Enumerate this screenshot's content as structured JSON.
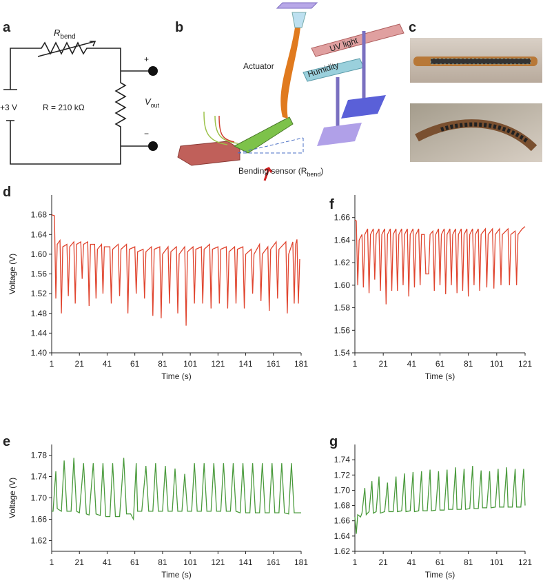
{
  "panel_a": {
    "label": "a",
    "r_bend": "R",
    "r_bend_sub": "bend",
    "plus": "+",
    "minus": "−",
    "source": "+3 V",
    "resistor": "R = 210 kΩ",
    "vout": "V",
    "vout_sub": "out"
  },
  "panel_b": {
    "label": "b",
    "actuator": "Actuator",
    "uv_light": "UV light",
    "humidity": "Humidity",
    "sensor": "Bending sensor (R",
    "sensor_sub": "bend",
    "sensor_end": ")"
  },
  "panel_c": {
    "label": "c"
  },
  "chart_data": [
    {
      "type": "line",
      "label": "d",
      "xlabel": "Time (s)",
      "ylabel": "Voltage (V)",
      "color": "#e0452f",
      "xlim": [
        1,
        181
      ],
      "ylim": [
        1.4,
        1.72
      ],
      "xticks": [
        1,
        21,
        41,
        61,
        81,
        101,
        121,
        141,
        161,
        181
      ],
      "yticks": [
        {
          "value": 1.4,
          "label": "1.40"
        },
        1.44,
        1.48,
        1.52,
        1.56,
        {
          "value": 1.6,
          "label": "1.60"
        },
        1.64,
        1.68
      ],
      "x": [
        1,
        3,
        4,
        5,
        7,
        8,
        9,
        12,
        13,
        14,
        17,
        18,
        19,
        22,
        23,
        24,
        27,
        28,
        29,
        32,
        33,
        34,
        37,
        38,
        39,
        43,
        44,
        45,
        49,
        50,
        51,
        55,
        56,
        57,
        61,
        62,
        63,
        67,
        68,
        69,
        73,
        74,
        75,
        79,
        80,
        81,
        85,
        86,
        87,
        91,
        92,
        93,
        97,
        98,
        99,
        103,
        104,
        105,
        109,
        110,
        111,
        115,
        116,
        117,
        121,
        122,
        123,
        127,
        128,
        129,
        133,
        134,
        135,
        139,
        140,
        141,
        145,
        146,
        147,
        151,
        152,
        153,
        157,
        158,
        159,
        163,
        164,
        165,
        170,
        171,
        172,
        175,
        176,
        177,
        178,
        179,
        180
      ],
      "values": [
        1.68,
        1.678,
        1.51,
        1.62,
        1.628,
        1.48,
        1.615,
        1.62,
        1.515,
        1.615,
        1.625,
        1.5,
        1.62,
        1.625,
        1.55,
        1.62,
        1.625,
        1.495,
        1.62,
        1.62,
        1.51,
        1.61,
        1.62,
        1.52,
        1.615,
        1.615,
        1.5,
        1.61,
        1.62,
        1.515,
        1.61,
        1.62,
        1.48,
        1.61,
        1.615,
        1.52,
        1.605,
        1.61,
        1.51,
        1.605,
        1.615,
        1.475,
        1.61,
        1.615,
        1.47,
        1.6,
        1.615,
        1.5,
        1.605,
        1.615,
        1.48,
        1.6,
        1.615,
        1.455,
        1.605,
        1.615,
        1.5,
        1.61,
        1.615,
        1.5,
        1.61,
        1.62,
        1.49,
        1.61,
        1.615,
        1.5,
        1.61,
        1.615,
        1.49,
        1.605,
        1.615,
        1.5,
        1.61,
        1.615,
        1.49,
        1.6,
        1.61,
        1.52,
        1.6,
        1.62,
        1.505,
        1.6,
        1.615,
        1.485,
        1.61,
        1.625,
        1.51,
        1.61,
        1.625,
        1.48,
        1.6,
        1.625,
        1.5,
        1.62,
        1.63,
        1.5,
        1.59
      ]
    },
    {
      "type": "line",
      "label": "f",
      "xlabel": "Time (s)",
      "color": "#e0452f",
      "xlim": [
        1,
        121
      ],
      "ylim": [
        1.54,
        1.68
      ],
      "xticks": [
        1,
        21,
        41,
        61,
        81,
        101,
        121
      ],
      "yticks": [
        1.54,
        1.56,
        1.58,
        {
          "value": 1.6,
          "label": "1.60"
        },
        1.62,
        1.64,
        1.66
      ],
      "x": [
        1,
        2,
        3,
        4,
        6,
        7,
        8,
        10,
        11,
        12,
        14,
        15,
        16,
        18,
        19,
        20,
        22,
        23,
        24,
        26,
        27,
        28,
        30,
        31,
        32,
        34,
        35,
        36,
        38,
        39,
        40,
        42,
        43,
        44,
        46,
        47,
        48,
        50,
        51,
        53,
        54,
        56,
        57,
        58,
        60,
        61,
        62,
        64,
        65,
        66,
        68,
        69,
        70,
        72,
        73,
        74,
        76,
        77,
        78,
        80,
        81,
        82,
        84,
        85,
        86,
        88,
        89,
        90,
        93,
        94,
        95,
        98,
        99,
        100,
        103,
        104,
        105,
        109,
        110,
        111,
        114,
        115,
        116,
        119,
        121
      ],
      "values": [
        1.658,
        1.657,
        1.6,
        1.64,
        1.645,
        1.598,
        1.645,
        1.65,
        1.593,
        1.645,
        1.65,
        1.605,
        1.645,
        1.65,
        1.595,
        1.645,
        1.65,
        1.583,
        1.645,
        1.65,
        1.595,
        1.645,
        1.65,
        1.595,
        1.645,
        1.65,
        1.6,
        1.645,
        1.65,
        1.59,
        1.645,
        1.65,
        1.598,
        1.645,
        1.65,
        1.6,
        1.645,
        1.645,
        1.61,
        1.61,
        1.645,
        1.648,
        1.595,
        1.645,
        1.65,
        1.6,
        1.645,
        1.65,
        1.592,
        1.645,
        1.65,
        1.6,
        1.645,
        1.65,
        1.593,
        1.645,
        1.65,
        1.595,
        1.645,
        1.65,
        1.59,
        1.645,
        1.65,
        1.6,
        1.645,
        1.65,
        1.595,
        1.645,
        1.65,
        1.598,
        1.645,
        1.65,
        1.597,
        1.645,
        1.65,
        1.6,
        1.645,
        1.65,
        1.6,
        1.645,
        1.648,
        1.6,
        1.645,
        1.65,
        1.652
      ]
    },
    {
      "type": "line",
      "label": "e",
      "xlabel": "Time (s)",
      "ylabel": "Voltage (V)",
      "color": "#4a9a3c",
      "xlim": [
        1,
        181
      ],
      "ylim": [
        1.6,
        1.8
      ],
      "xticks": [
        1,
        21,
        41,
        61,
        81,
        101,
        121,
        141,
        161,
        181
      ],
      "yticks": [
        1.62,
        1.66,
        {
          "value": 1.7,
          "label": "1.70"
        },
        1.74,
        1.78
      ],
      "x": [
        1,
        2,
        4,
        5,
        8,
        10,
        12,
        15,
        17,
        19,
        21,
        24,
        26,
        28,
        31,
        33,
        36,
        38,
        40,
        43,
        45,
        47,
        50,
        53,
        55,
        58,
        60,
        62,
        63,
        66,
        69,
        71,
        74,
        76,
        78,
        81,
        83,
        85,
        88,
        90,
        92,
        95,
        97,
        99,
        102,
        104,
        106,
        109,
        111,
        113,
        116,
        118,
        120,
        123,
        125,
        127,
        130,
        132,
        134,
        137,
        139,
        141,
        144,
        146,
        148,
        151,
        153,
        155,
        158,
        160,
        162,
        165,
        167,
        169,
        172,
        174,
        176,
        181
      ],
      "values": [
        1.675,
        1.675,
        1.75,
        1.68,
        1.675,
        1.77,
        1.675,
        1.675,
        1.775,
        1.675,
        1.672,
        1.765,
        1.67,
        1.668,
        1.765,
        1.67,
        1.667,
        1.765,
        1.665,
        1.665,
        1.765,
        1.665,
        1.665,
        1.775,
        1.67,
        1.67,
        1.66,
        1.765,
        1.675,
        1.675,
        1.76,
        1.675,
        1.675,
        1.765,
        1.675,
        1.675,
        1.76,
        1.675,
        1.675,
        1.755,
        1.675,
        1.675,
        1.745,
        1.675,
        1.675,
        1.765,
        1.675,
        1.675,
        1.765,
        1.675,
        1.675,
        1.765,
        1.675,
        1.675,
        1.765,
        1.675,
        1.675,
        1.765,
        1.675,
        1.672,
        1.765,
        1.672,
        1.672,
        1.765,
        1.672,
        1.672,
        1.765,
        1.672,
        1.672,
        1.765,
        1.672,
        1.672,
        1.765,
        1.672,
        1.67,
        1.765,
        1.672,
        1.672
      ]
    },
    {
      "type": "line",
      "label": "g",
      "xlabel": "Time (s)",
      "color": "#4a9a3c",
      "xlim": [
        1,
        121
      ],
      "ylim": [
        1.62,
        1.76
      ],
      "xticks": [
        1,
        21,
        41,
        61,
        81,
        101,
        121
      ],
      "yticks": [
        1.62,
        1.64,
        1.66,
        1.68,
        {
          "value": 1.7,
          "label": "1.70"
        },
        1.72,
        1.74
      ],
      "x": [
        1,
        2,
        3,
        5,
        6,
        8,
        9,
        11,
        13,
        14,
        16,
        18,
        19,
        22,
        24,
        25,
        28,
        30,
        31,
        34,
        36,
        37,
        40,
        42,
        43,
        46,
        48,
        49,
        52,
        54,
        55,
        58,
        60,
        61,
        64,
        66,
        67,
        70,
        72,
        73,
        76,
        78,
        79,
        82,
        84,
        85,
        88,
        90,
        91,
        94,
        96,
        97,
        100,
        102,
        103,
        106,
        108,
        109,
        112,
        114,
        115,
        118,
        120,
        121
      ],
      "values": [
        1.665,
        1.643,
        1.668,
        1.665,
        1.67,
        1.703,
        1.668,
        1.672,
        1.712,
        1.67,
        1.672,
        1.718,
        1.67,
        1.672,
        1.71,
        1.672,
        1.672,
        1.718,
        1.672,
        1.673,
        1.722,
        1.672,
        1.673,
        1.724,
        1.672,
        1.673,
        1.725,
        1.673,
        1.673,
        1.727,
        1.673,
        1.674,
        1.725,
        1.674,
        1.674,
        1.727,
        1.675,
        1.675,
        1.73,
        1.675,
        1.675,
        1.728,
        1.675,
        1.676,
        1.732,
        1.676,
        1.676,
        1.726,
        1.677,
        1.677,
        1.725,
        1.677,
        1.678,
        1.728,
        1.678,
        1.678,
        1.73,
        1.678,
        1.678,
        1.728,
        1.678,
        1.678,
        1.728,
        1.68
      ]
    }
  ]
}
